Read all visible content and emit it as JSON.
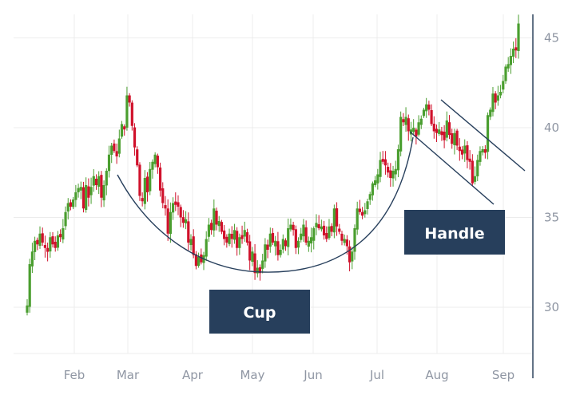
{
  "chart_data": {
    "type": "candlestick",
    "title": "",
    "xlabel": "",
    "ylabel": "",
    "x_ticks": [
      "Feb",
      "Mar",
      "Apr",
      "May",
      "Jun",
      "Jul",
      "Aug",
      "Sep"
    ],
    "y_ticks": [
      30,
      35,
      40,
      45
    ],
    "ylim": [
      27.5,
      46.5
    ],
    "y_axis_position": "right",
    "grid": true,
    "colors": {
      "up": "#4a9e2f",
      "down": "#d0112b",
      "annotation": "#273f5c",
      "grid": "#ececec",
      "axis": "#3c5068"
    },
    "series": [
      {
        "closes": [
          30.1,
          32.4,
          33.1,
          33.7,
          33.5,
          34.1,
          33.6,
          33.3,
          33.2,
          33.9,
          33.5,
          33.3,
          34.0,
          33.9,
          34.4,
          35.3,
          35.8,
          35.6,
          36.0,
          36.4,
          36.5,
          36.7,
          35.5,
          36.8,
          36.1,
          36.7,
          37.3,
          36.8,
          37.3,
          36.1,
          36.8,
          37.6,
          38.5,
          39.0,
          38.7,
          38.5,
          39.4,
          40.2,
          39.9,
          41.8,
          41.4,
          40.1,
          38.9,
          37.9,
          36.2,
          35.9,
          37.2,
          36.4,
          37.7,
          38.1,
          38.5,
          37.8,
          36.5,
          35.8,
          35.5,
          34.1,
          35.3,
          35.8,
          35.7,
          35.6,
          35.0,
          34.7,
          34.8,
          33.6,
          33.8,
          32.9,
          32.3,
          32.8,
          32.5,
          32.9,
          33.8,
          34.6,
          34.3,
          35.5,
          34.6,
          34.8,
          34.2,
          33.8,
          33.6,
          34.1,
          33.9,
          34.3,
          33.3,
          33.9,
          33.8,
          34.3,
          33.6,
          32.6,
          33.1,
          31.9,
          32.1,
          32.0,
          32.6,
          33.5,
          33.3,
          34.1,
          33.6,
          33.6,
          32.9,
          33.1,
          33.8,
          33.4,
          34.4,
          34.5,
          34.4,
          33.3,
          33.7,
          34.1,
          34.6,
          33.6,
          33.6,
          33.8,
          34.4,
          34.6,
          34.4,
          34.5,
          34.0,
          33.8,
          34.5,
          34.3,
          35.5,
          34.5,
          34.2,
          33.7,
          33.8,
          33.4,
          32.5,
          33.1,
          34.4,
          35.5,
          35.3,
          35.1,
          35.4,
          35.9,
          36.3,
          36.9,
          36.9,
          37.4,
          38.2,
          38.1,
          37.9,
          37.5,
          37.2,
          37.6,
          37.6,
          38.8,
          40.6,
          40.3,
          40.6,
          39.8,
          39.8,
          40.0,
          39.5,
          40.3,
          40.5,
          41.0,
          41.3,
          41.1,
          40.2,
          39.8,
          39.7,
          39.8,
          39.7,
          39.3,
          40.4,
          39.6,
          39.1,
          39.7,
          39.0,
          38.7,
          38.5,
          39.0,
          38.2,
          38.1,
          36.9,
          37.3,
          38.2,
          38.7,
          38.8,
          38.7,
          40.7,
          41.0,
          41.9,
          41.4,
          41.8,
          42.0,
          42.6,
          43.4,
          43.4,
          44.0,
          44.4,
          44.3,
          45.8
        ]
      }
    ]
  },
  "annotations": {
    "cup_label": "Cup",
    "handle_label": "Handle"
  }
}
